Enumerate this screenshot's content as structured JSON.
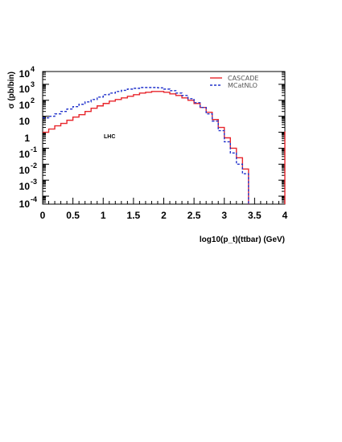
{
  "chart_data": {
    "type": "line",
    "title": "",
    "xlabel": "log10(p_t)(ttbar) (GeV)",
    "ylabel": "σ (pb/bin)",
    "xlim": [
      0,
      4
    ],
    "ylim_log10": [
      -4.5,
      3.8
    ],
    "y_scale": "log",
    "x_ticks": [
      "0",
      "0.5",
      "1",
      "1.5",
      "2",
      "2.5",
      "3",
      "3.5",
      "4"
    ],
    "y_ticks": [
      {
        "base": "10",
        "exp": "4"
      },
      {
        "base": "10",
        "exp": "3"
      },
      {
        "base": "10",
        "exp": "2"
      },
      {
        "base": "10",
        "exp": ""
      },
      {
        "base": "1",
        "exp": ""
      },
      {
        "base": "10",
        "exp": "-1"
      },
      {
        "base": "10",
        "exp": "-2"
      },
      {
        "base": "10",
        "exp": "-3"
      },
      {
        "base": "10",
        "exp": "-4"
      }
    ],
    "annotation": "LHC",
    "legend_position": "top-right",
    "bin_edges": [
      0,
      0.1,
      0.2,
      0.3,
      0.4,
      0.5,
      0.6,
      0.7,
      0.8,
      0.9,
      1.0,
      1.1,
      1.2,
      1.3,
      1.4,
      1.5,
      1.6,
      1.7,
      1.8,
      1.9,
      2.0,
      2.1,
      2.2,
      2.3,
      2.4,
      2.5,
      2.6,
      2.7,
      2.8,
      2.9,
      3.0,
      3.1,
      3.2,
      3.3,
      3.4
    ],
    "series": [
      {
        "name": "CASCADE",
        "color": "#e8262c",
        "dash": "solid",
        "log10_values": [
          0.0,
          0.2,
          0.4,
          0.55,
          0.75,
          0.95,
          1.1,
          1.3,
          1.5,
          1.65,
          1.8,
          1.95,
          2.05,
          2.15,
          2.25,
          2.35,
          2.45,
          2.5,
          2.55,
          2.55,
          2.5,
          2.4,
          2.3,
          2.15,
          2.0,
          1.8,
          1.55,
          1.25,
          0.8,
          0.3,
          -0.35,
          -1.0,
          -1.6,
          -2.3
        ],
        "values": [
          1.0,
          1.6,
          2.5,
          3.5,
          5.6,
          8.9,
          12.6,
          20.0,
          31.6,
          44.7,
          63.1,
          89.1,
          112,
          141,
          178,
          224,
          282,
          316,
          355,
          355,
          316,
          251,
          200,
          141,
          100,
          63.1,
          35.5,
          17.8,
          6.3,
          2.0,
          0.45,
          0.1,
          0.025,
          0.005
        ]
      },
      {
        "name": "MCatNLO",
        "color": "#2233cc",
        "dash": "dashed",
        "log10_values": [
          0.9,
          1.0,
          1.15,
          1.3,
          1.45,
          1.6,
          1.75,
          1.9,
          2.05,
          2.2,
          2.35,
          2.45,
          2.55,
          2.62,
          2.7,
          2.75,
          2.8,
          2.8,
          2.8,
          2.78,
          2.7,
          2.6,
          2.45,
          2.3,
          2.1,
          1.85,
          1.55,
          1.15,
          0.7,
          0.1,
          -0.6,
          -1.3,
          -2.0,
          -2.6
        ],
        "values": [
          7.9,
          10.0,
          14.1,
          20.0,
          28.2,
          39.8,
          56.2,
          79.4,
          112,
          158,
          224,
          282,
          355,
          417,
          501,
          562,
          631,
          631,
          631,
          603,
          501,
          398,
          282,
          200,
          126,
          70.8,
          35.5,
          14.1,
          5.0,
          1.26,
          0.25,
          0.05,
          0.01,
          0.0025
        ]
      }
    ]
  }
}
